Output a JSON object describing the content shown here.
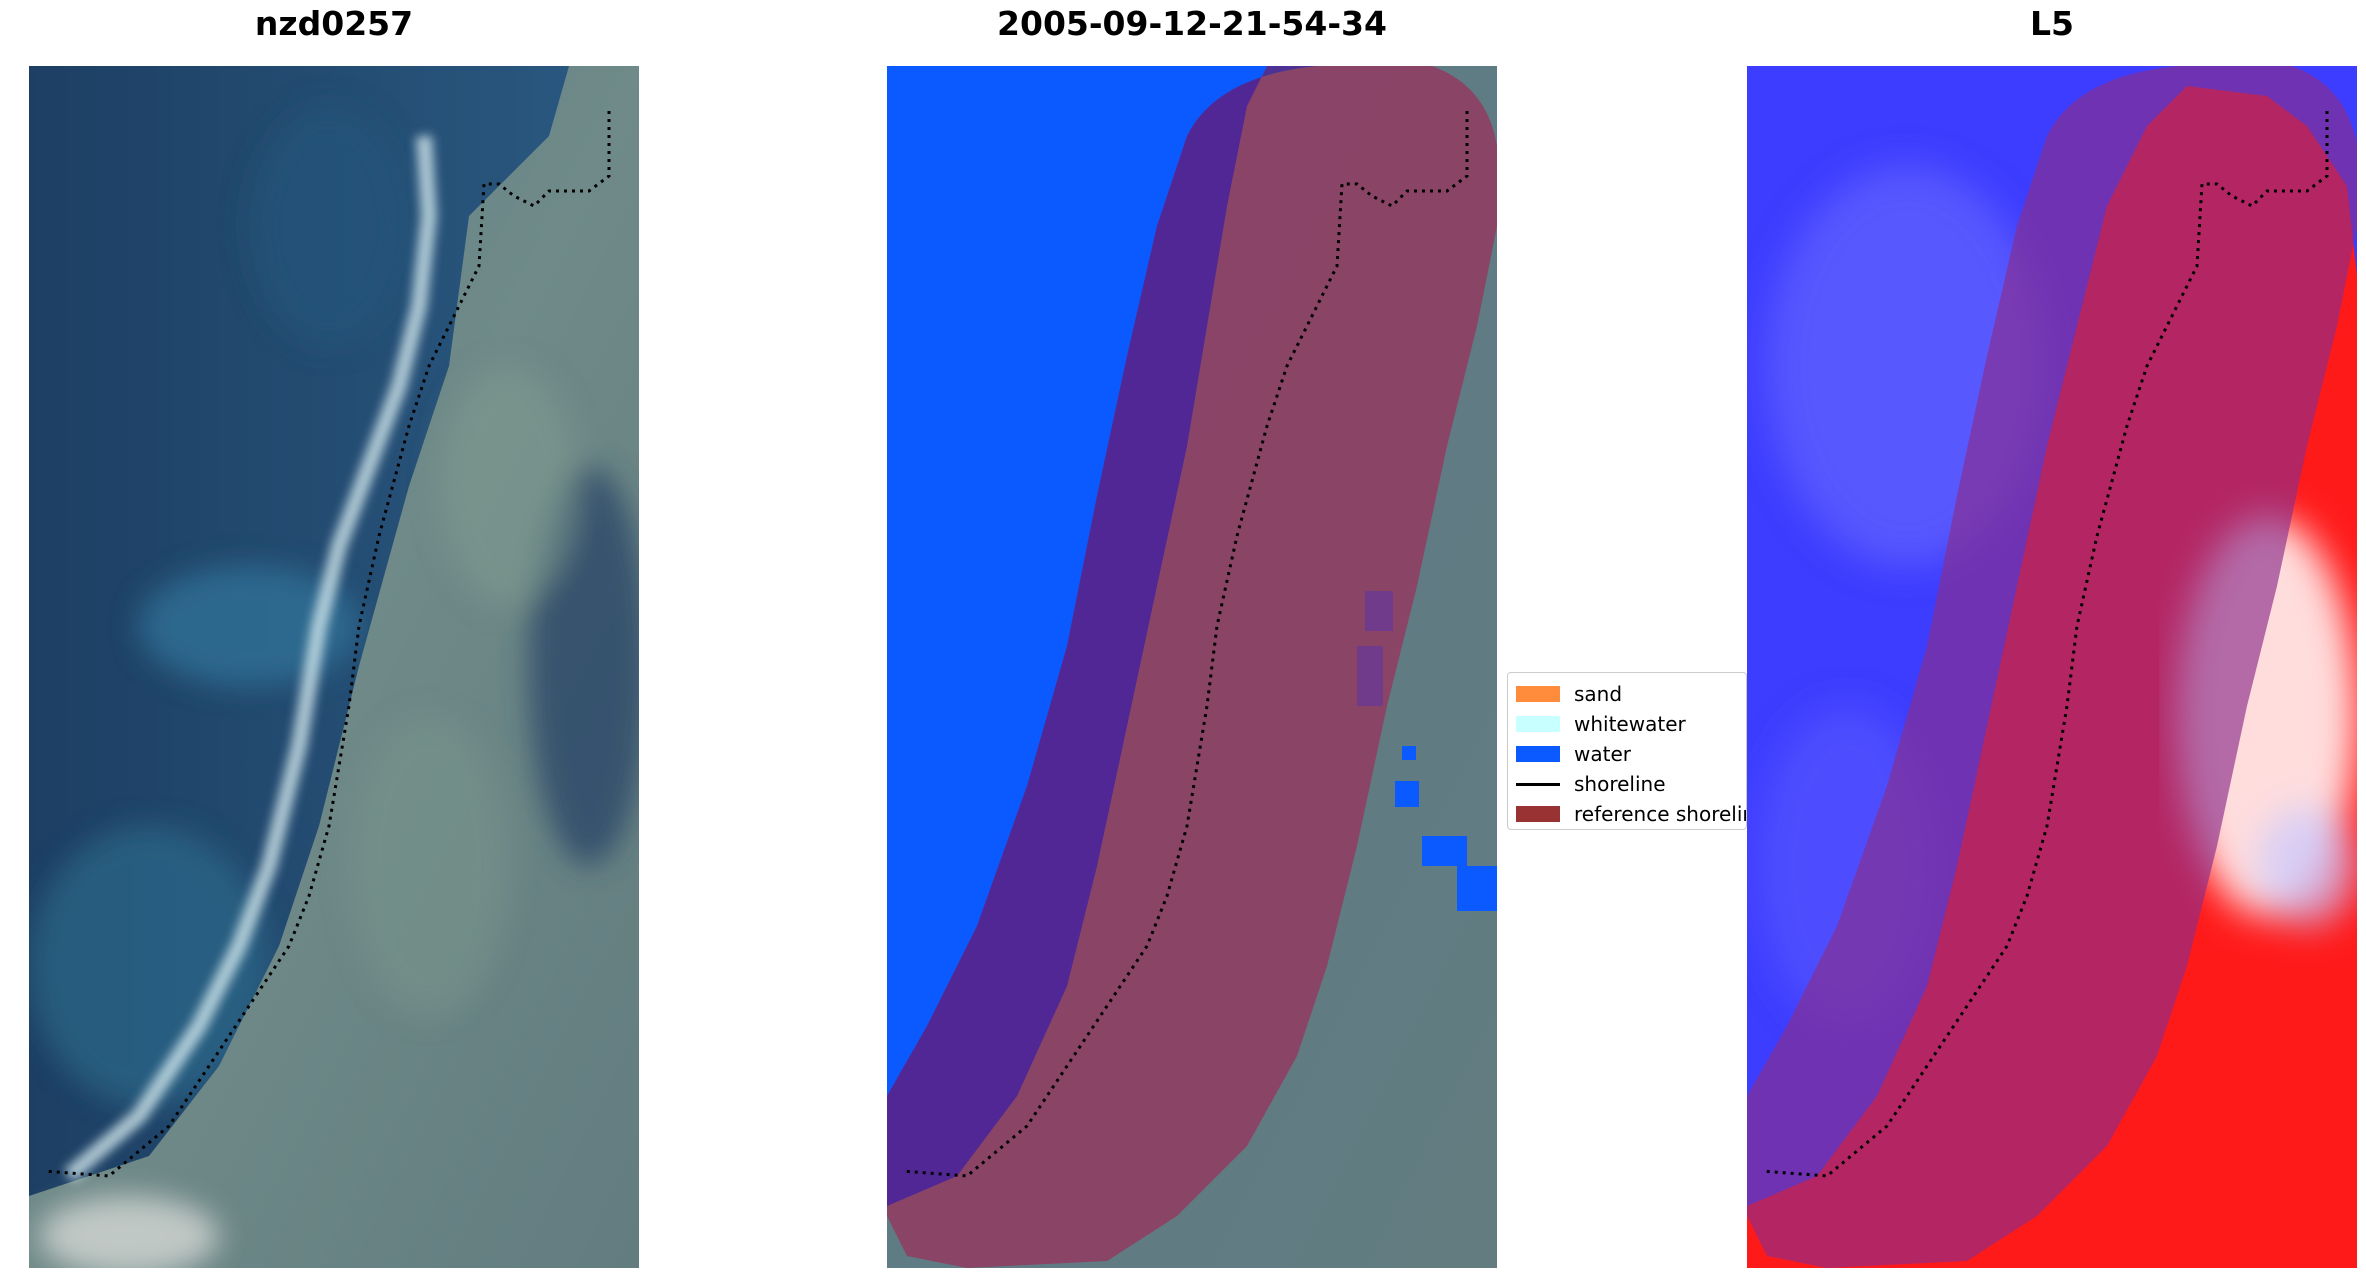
{
  "panels": [
    {
      "id": "rgb",
      "title": "nzd0257"
    },
    {
      "id": "classified",
      "title": "2005-09-12-21-54-34"
    },
    {
      "id": "index",
      "title": "L5"
    }
  ],
  "legend": {
    "items": [
      {
        "label": "sand",
        "color": "#ff8c3c",
        "kind": "patch"
      },
      {
        "label": "whitewater",
        "color": "#c8ffff",
        "kind": "patch"
      },
      {
        "label": "water",
        "color": "#0a5aff",
        "kind": "patch"
      },
      {
        "label": "shoreline",
        "color": "#000000",
        "kind": "line"
      },
      {
        "label": "reference shoreline",
        "color": "#993333",
        "kind": "patch"
      }
    ]
  },
  "colors": {
    "water_class": "#0a5aff",
    "reference_buffer": "#9b2d5a",
    "index_water": "#3d3dff",
    "index_land": "#ff1a1a"
  }
}
